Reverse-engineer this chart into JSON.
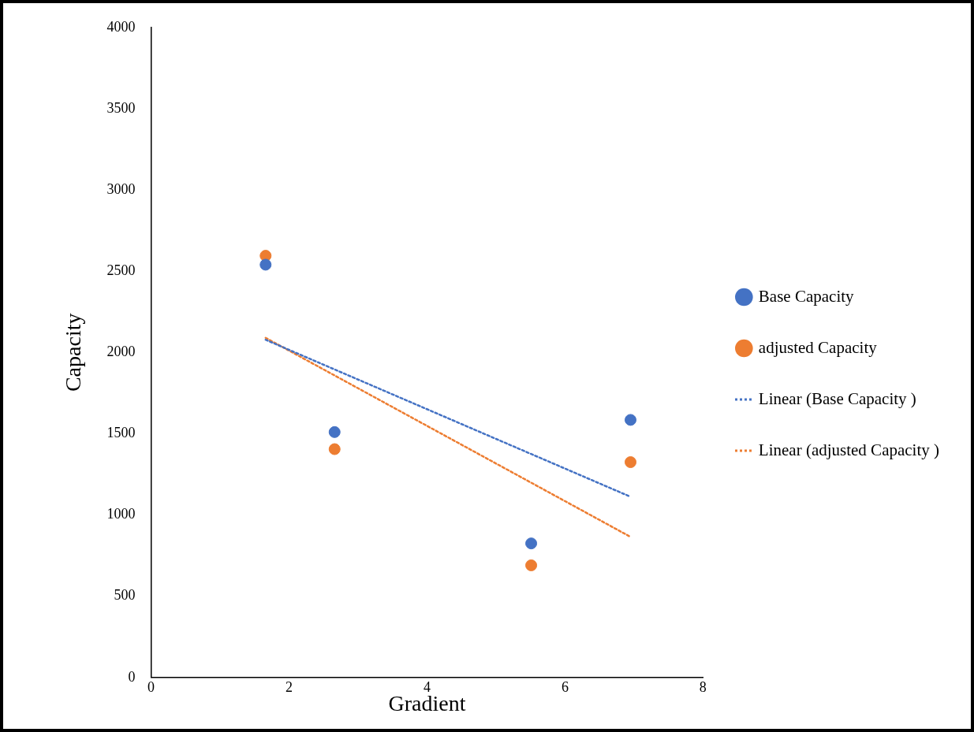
{
  "chart_data": {
    "type": "scatter",
    "xlabel": "Gradient",
    "ylabel": "Capacity",
    "xlim": [
      0,
      8
    ],
    "xticks": [
      0,
      2,
      4,
      6,
      8
    ],
    "ylim": [
      0,
      4000
    ],
    "yticks": [
      0,
      500,
      1000,
      1500,
      2000,
      2500,
      3000,
      3500,
      4000
    ],
    "grid": false,
    "legend": "right",
    "marker": "circle",
    "series": [
      {
        "name": "Base Capacity",
        "color": "#4472c4",
        "x": [
          1.66,
          2.66,
          5.51,
          6.95
        ],
        "values": [
          2540,
          1510,
          825,
          1585
        ]
      },
      {
        "name": "adjusted Capacity",
        "color": "#ed7d31",
        "x": [
          1.66,
          2.66,
          5.51,
          6.95
        ],
        "values": [
          2595,
          1405,
          690,
          1325
        ]
      },
      {
        "name": "Linear (Base Capacity )",
        "type": "line",
        "marker": "none",
        "line_style": "dotted",
        "color": "#4472c4",
        "x": [
          1.66,
          6.95
        ],
        "values": [
          2078,
          1112
        ]
      },
      {
        "name": "Linear (adjusted Capacity )",
        "type": "line",
        "marker": "none",
        "line_style": "dotted",
        "color": "#ed7d31",
        "x": [
          1.66,
          6.95
        ],
        "values": [
          2090,
          865
        ]
      }
    ]
  }
}
